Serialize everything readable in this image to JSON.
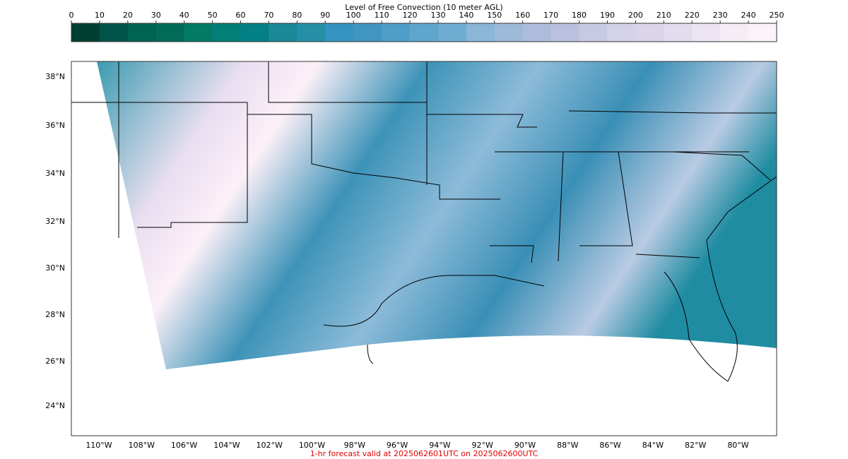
{
  "colorbar": {
    "label": "Level of Free Convection (10 meter AGL)",
    "ticks": [
      0,
      10,
      20,
      30,
      40,
      50,
      60,
      70,
      80,
      90,
      100,
      110,
      120,
      130,
      140,
      150,
      160,
      170,
      180,
      190,
      200,
      210,
      220,
      230,
      240,
      250
    ],
    "colors": [
      "#003f32",
      "#01544a",
      "#016352",
      "#026b58",
      "#037a65",
      "#027f76",
      "#028085",
      "#1a8a98",
      "#258fa6",
      "#3593c3",
      "#4096c0",
      "#4e9ec8",
      "#5ea6cc",
      "#70acd2",
      "#8ab6d8",
      "#9fb9d9",
      "#aebcdc",
      "#bac1df",
      "#c8cae4",
      "#d3d2e8",
      "#dbd5ea",
      "#e3dcee",
      "#ece4f2",
      "#f5ecf6",
      "#fcf2f9"
    ]
  },
  "map": {
    "lat_labels": [
      "38°N",
      "36°N",
      "34°N",
      "32°N",
      "30°N",
      "28°N",
      "26°N",
      "24°N"
    ],
    "lon_labels": [
      "110°W",
      "108°W",
      "106°W",
      "104°W",
      "102°W",
      "100°W",
      "98°W",
      "96°W",
      "94°W",
      "92°W",
      "90°W",
      "88°W",
      "86°W",
      "84°W",
      "82°W",
      "80°W"
    ]
  },
  "footer": "1-hr forecast valid at 2025062601UTC on 2025062600UTC"
}
